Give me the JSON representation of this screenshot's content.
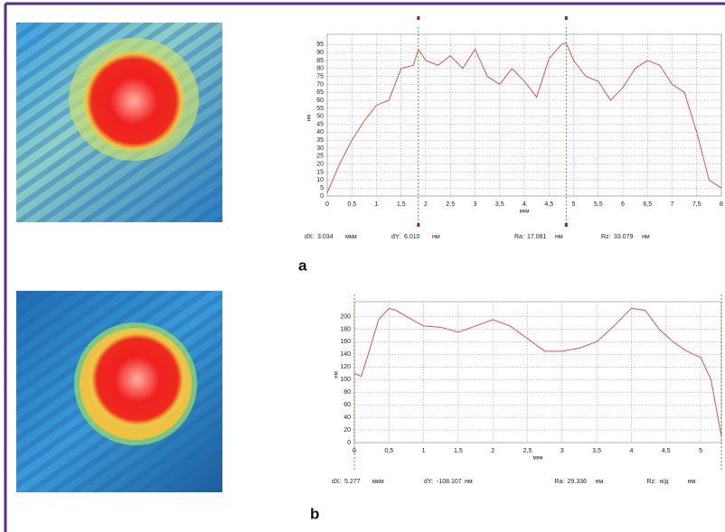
{
  "chart_data": [
    {
      "type": "line",
      "panel": "a",
      "color": "#d9534f",
      "xlabel": "мкм",
      "ylabel": "нм",
      "x": [
        0,
        0.25,
        0.5,
        0.75,
        1,
        1.25,
        1.5,
        1.75,
        1.85,
        2,
        2.25,
        2.5,
        2.75,
        3,
        3.25,
        3.5,
        3.75,
        4,
        4.25,
        4.5,
        4.75,
        4.85,
        5,
        5.25,
        5.5,
        5.75,
        6,
        6.25,
        6.5,
        6.75,
        7,
        7.25,
        7.5,
        7.75,
        8
      ],
      "values": [
        2,
        20,
        35,
        47,
        57,
        60,
        80,
        82,
        92,
        85,
        82,
        88,
        80,
        92,
        75,
        70,
        80,
        72,
        62,
        86,
        95,
        96,
        85,
        75,
        72,
        60,
        68,
        80,
        85,
        82,
        70,
        65,
        40,
        10,
        5
      ],
      "cursors": [
        1.85,
        4.85
      ],
      "xlim": [
        0,
        8
      ],
      "ylim": [
        0,
        98
      ],
      "xticks": [
        0,
        {
          "value": 0.5,
          "label": "0,5"
        },
        1,
        {
          "value": 1.5,
          "label": "1,5"
        },
        2,
        {
          "value": 2.5,
          "label": "2,5"
        },
        3,
        {
          "value": 3.5,
          "label": "3,5"
        },
        4,
        {
          "value": 4.5,
          "label": "4,5"
        },
        5,
        {
          "value": 5.5,
          "label": "5,5"
        },
        6,
        {
          "value": 6.5,
          "label": "6,5"
        },
        7,
        {
          "value": 7.5,
          "label": "7,5"
        },
        8
      ],
      "yticks": [
        0,
        5,
        10,
        15,
        20,
        25,
        30,
        35,
        40,
        45,
        50,
        55,
        60,
        65,
        70,
        75,
        80,
        85,
        90,
        95
      ],
      "measurements": [
        {
          "label": "dX:",
          "value": "3.034",
          "unit": "мкм"
        },
        {
          "label": "dY:",
          "value": "6.010",
          "unit": "нм"
        },
        {
          "label": "Ra:",
          "value": "17.081",
          "unit": "нм"
        },
        {
          "label": "Rz:",
          "value": "33.079",
          "unit": "нм"
        }
      ]
    },
    {
      "type": "line",
      "panel": "b",
      "color": "#d9534f",
      "xlabel": "мкм",
      "ylabel": "нм",
      "x": [
        0,
        0.1,
        0.2,
        0.35,
        0.5,
        0.6,
        0.75,
        1,
        1.25,
        1.5,
        1.75,
        2,
        2.25,
        2.5,
        2.75,
        3,
        3.25,
        3.5,
        3.75,
        4,
        4.2,
        4.4,
        4.6,
        4.8,
        5,
        5.15,
        5.3
      ],
      "values": [
        110,
        105,
        140,
        195,
        213,
        210,
        200,
        185,
        183,
        175,
        185,
        195,
        185,
        165,
        145,
        145,
        150,
        160,
        185,
        213,
        210,
        180,
        160,
        145,
        135,
        100,
        10
      ],
      "cursors": [
        0,
        5.3
      ],
      "xlim": [
        0,
        5.3
      ],
      "ylim": [
        0,
        215
      ],
      "xticks": [
        0,
        {
          "value": 0.5,
          "label": "0,5"
        },
        1,
        {
          "value": 1.5,
          "label": "1,5"
        },
        2,
        {
          "value": 2.5,
          "label": "2,5"
        },
        3,
        {
          "value": 3.5,
          "label": "3,5"
        },
        4,
        {
          "value": 4.5,
          "label": "4,5"
        },
        5
      ],
      "yticks": [
        0,
        20,
        40,
        60,
        80,
        100,
        120,
        140,
        160,
        180,
        200
      ],
      "measurements": [
        {
          "label": "dX:",
          "value": "5.277",
          "unit": "мкм"
        },
        {
          "label": "dY:",
          "value": "-108.107",
          "unit": "нм"
        },
        {
          "label": "Ra:",
          "value": "29.336",
          "unit": "нм"
        },
        {
          "label": "Rz:",
          "value": "н/д",
          "unit": "нм"
        }
      ]
    }
  ]
}
